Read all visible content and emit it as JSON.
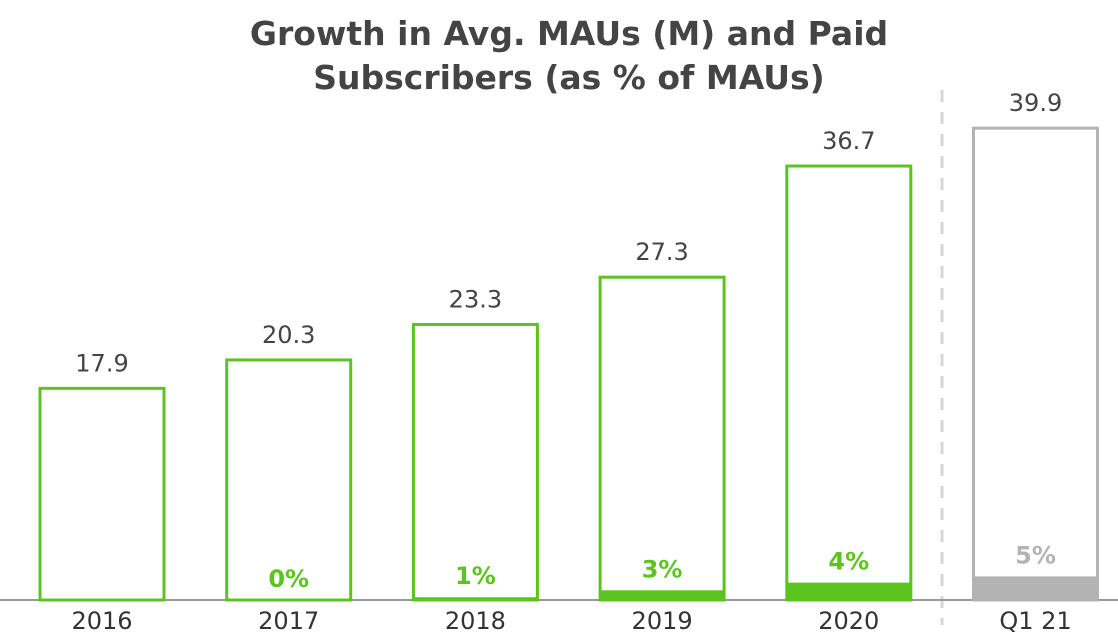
{
  "chart_data": {
    "type": "bar",
    "title": "Growth in Avg. MAUs (M) and Paid Subscribers (as % of MAUs)",
    "categories": [
      "2016",
      "2017",
      "2018",
      "2019",
      "2020",
      "Q1 21"
    ],
    "colors": [
      "#5cc41f",
      "#5cc41f",
      "#5cc41f",
      "#5cc41f",
      "#5cc41f",
      "#b3b3b3"
    ],
    "series": [
      {
        "values": [
          17.9,
          20.3,
          23.3,
          27.3,
          36.7,
          39.9
        ]
      },
      {
        "values": [
          null,
          0,
          1,
          3,
          4,
          5
        ],
        "value_labels": [
          null,
          "0%",
          "1%",
          "3%",
          "4%",
          "5%"
        ]
      }
    ],
    "ylim": [
      0,
      40
    ]
  }
}
